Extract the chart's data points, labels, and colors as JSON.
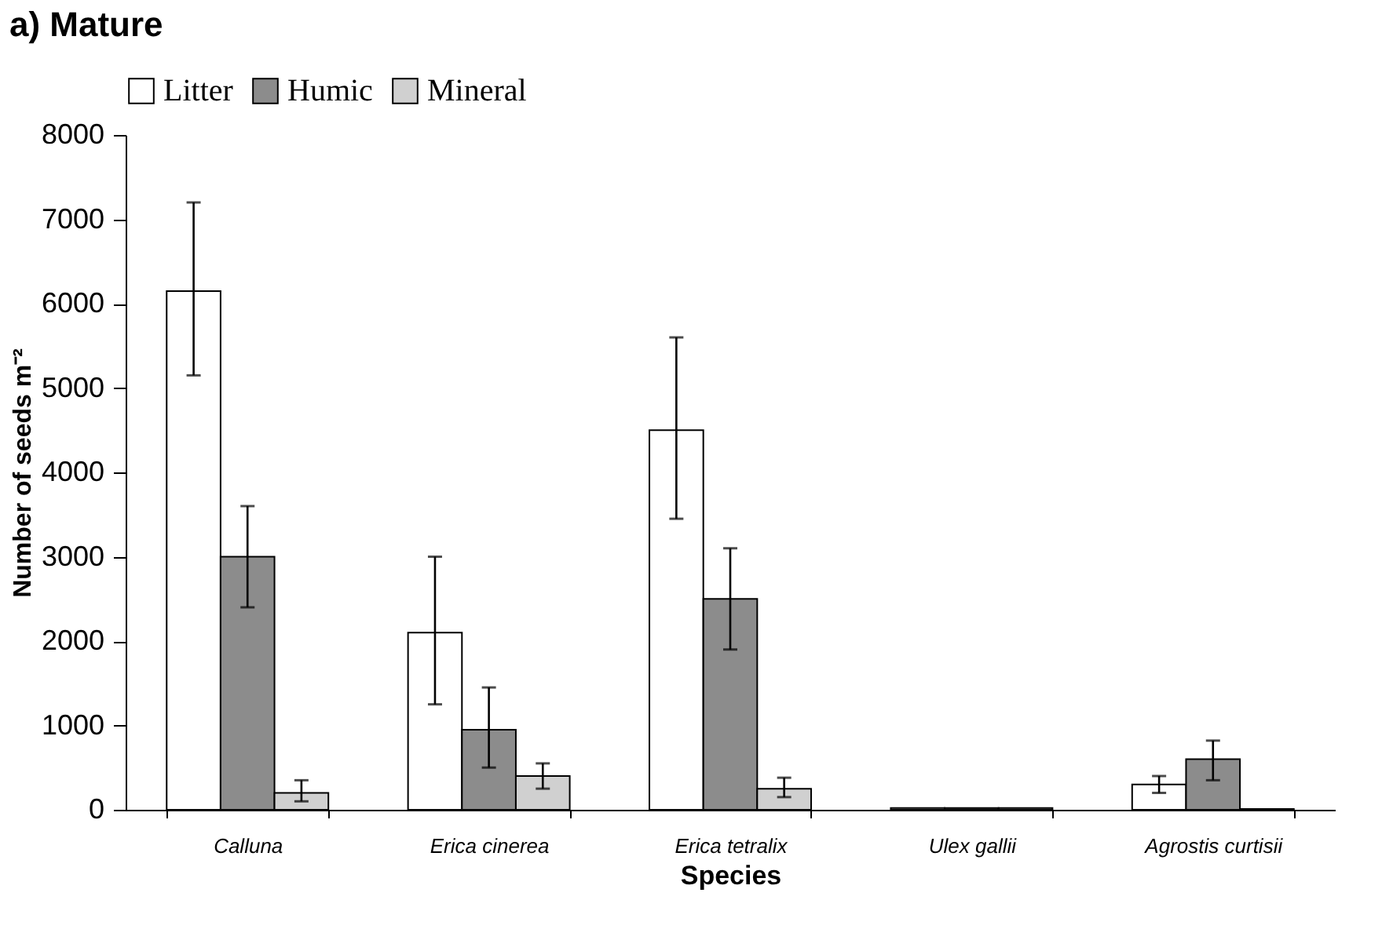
{
  "chart_data": {
    "type": "bar",
    "title": "a)  Mature",
    "xlabel": "Species",
    "ylabel": "Number of seeds m⁻²",
    "categories": [
      "Calluna",
      "Erica cinerea",
      "Erica tetralix",
      "Ulex gallii",
      "Agrostis curtisii"
    ],
    "series": [
      {
        "name": "Litter",
        "color": "#ffffff",
        "values": [
          6150,
          2100,
          4500,
          20,
          300
        ],
        "errors": [
          [
            5150,
            7200
          ],
          [
            1250,
            3000
          ],
          [
            3450,
            5600
          ],
          null,
          [
            200,
            400
          ]
        ]
      },
      {
        "name": "Humic",
        "color": "#8c8c8c",
        "values": [
          3000,
          950,
          2500,
          20,
          600
        ],
        "errors": [
          [
            2400,
            3600
          ],
          [
            500,
            1450
          ],
          [
            1900,
            3100
          ],
          null,
          [
            350,
            820
          ]
        ]
      },
      {
        "name": "Mineral",
        "color": "#d0d0d0",
        "values": [
          200,
          400,
          250,
          20,
          10
        ],
        "errors": [
          [
            100,
            350
          ],
          [
            250,
            550
          ],
          [
            150,
            380
          ],
          null,
          null
        ]
      }
    ],
    "ylim": [
      0,
      8000
    ],
    "yticks": [
      0,
      1000,
      2000,
      3000,
      4000,
      5000,
      6000,
      7000,
      8000
    ],
    "grid": false,
    "legend": "top"
  }
}
